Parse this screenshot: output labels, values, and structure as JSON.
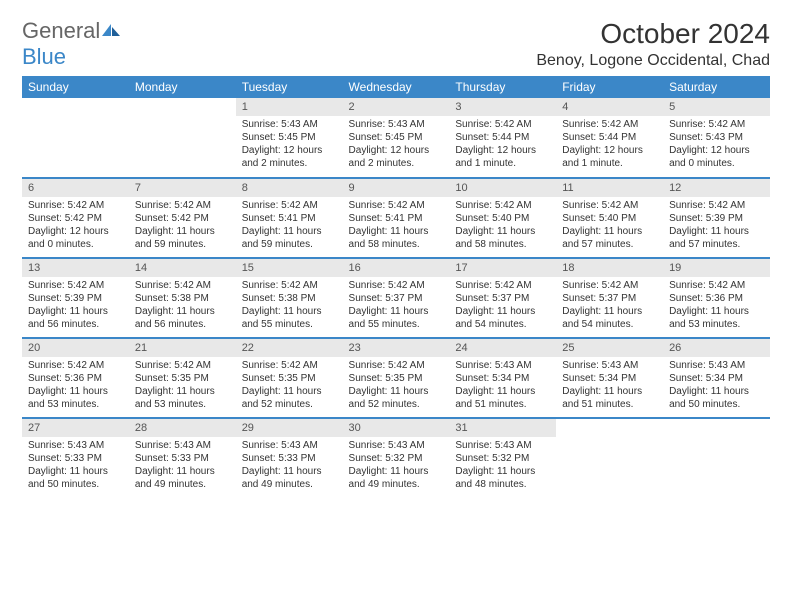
{
  "logo": {
    "general": "General",
    "blue": "Blue"
  },
  "title": "October 2024",
  "location": "Benoy, Logone Occidental, Chad",
  "colors": {
    "header_bg": "#3b87c8",
    "header_fg": "#ffffff",
    "daynum_bg": "#e8e8e8",
    "rule": "#3b87c8",
    "text": "#333333",
    "background": "#ffffff"
  },
  "weekdays": [
    "Sunday",
    "Monday",
    "Tuesday",
    "Wednesday",
    "Thursday",
    "Friday",
    "Saturday"
  ],
  "weeks": [
    [
      null,
      null,
      {
        "n": "1",
        "sr": "Sunrise: 5:43 AM",
        "ss": "Sunset: 5:45 PM",
        "dl": "Daylight: 12 hours and 2 minutes."
      },
      {
        "n": "2",
        "sr": "Sunrise: 5:43 AM",
        "ss": "Sunset: 5:45 PM",
        "dl": "Daylight: 12 hours and 2 minutes."
      },
      {
        "n": "3",
        "sr": "Sunrise: 5:42 AM",
        "ss": "Sunset: 5:44 PM",
        "dl": "Daylight: 12 hours and 1 minute."
      },
      {
        "n": "4",
        "sr": "Sunrise: 5:42 AM",
        "ss": "Sunset: 5:44 PM",
        "dl": "Daylight: 12 hours and 1 minute."
      },
      {
        "n": "5",
        "sr": "Sunrise: 5:42 AM",
        "ss": "Sunset: 5:43 PM",
        "dl": "Daylight: 12 hours and 0 minutes."
      }
    ],
    [
      {
        "n": "6",
        "sr": "Sunrise: 5:42 AM",
        "ss": "Sunset: 5:42 PM",
        "dl": "Daylight: 12 hours and 0 minutes."
      },
      {
        "n": "7",
        "sr": "Sunrise: 5:42 AM",
        "ss": "Sunset: 5:42 PM",
        "dl": "Daylight: 11 hours and 59 minutes."
      },
      {
        "n": "8",
        "sr": "Sunrise: 5:42 AM",
        "ss": "Sunset: 5:41 PM",
        "dl": "Daylight: 11 hours and 59 minutes."
      },
      {
        "n": "9",
        "sr": "Sunrise: 5:42 AM",
        "ss": "Sunset: 5:41 PM",
        "dl": "Daylight: 11 hours and 58 minutes."
      },
      {
        "n": "10",
        "sr": "Sunrise: 5:42 AM",
        "ss": "Sunset: 5:40 PM",
        "dl": "Daylight: 11 hours and 58 minutes."
      },
      {
        "n": "11",
        "sr": "Sunrise: 5:42 AM",
        "ss": "Sunset: 5:40 PM",
        "dl": "Daylight: 11 hours and 57 minutes."
      },
      {
        "n": "12",
        "sr": "Sunrise: 5:42 AM",
        "ss": "Sunset: 5:39 PM",
        "dl": "Daylight: 11 hours and 57 minutes."
      }
    ],
    [
      {
        "n": "13",
        "sr": "Sunrise: 5:42 AM",
        "ss": "Sunset: 5:39 PM",
        "dl": "Daylight: 11 hours and 56 minutes."
      },
      {
        "n": "14",
        "sr": "Sunrise: 5:42 AM",
        "ss": "Sunset: 5:38 PM",
        "dl": "Daylight: 11 hours and 56 minutes."
      },
      {
        "n": "15",
        "sr": "Sunrise: 5:42 AM",
        "ss": "Sunset: 5:38 PM",
        "dl": "Daylight: 11 hours and 55 minutes."
      },
      {
        "n": "16",
        "sr": "Sunrise: 5:42 AM",
        "ss": "Sunset: 5:37 PM",
        "dl": "Daylight: 11 hours and 55 minutes."
      },
      {
        "n": "17",
        "sr": "Sunrise: 5:42 AM",
        "ss": "Sunset: 5:37 PM",
        "dl": "Daylight: 11 hours and 54 minutes."
      },
      {
        "n": "18",
        "sr": "Sunrise: 5:42 AM",
        "ss": "Sunset: 5:37 PM",
        "dl": "Daylight: 11 hours and 54 minutes."
      },
      {
        "n": "19",
        "sr": "Sunrise: 5:42 AM",
        "ss": "Sunset: 5:36 PM",
        "dl": "Daylight: 11 hours and 53 minutes."
      }
    ],
    [
      {
        "n": "20",
        "sr": "Sunrise: 5:42 AM",
        "ss": "Sunset: 5:36 PM",
        "dl": "Daylight: 11 hours and 53 minutes."
      },
      {
        "n": "21",
        "sr": "Sunrise: 5:42 AM",
        "ss": "Sunset: 5:35 PM",
        "dl": "Daylight: 11 hours and 53 minutes."
      },
      {
        "n": "22",
        "sr": "Sunrise: 5:42 AM",
        "ss": "Sunset: 5:35 PM",
        "dl": "Daylight: 11 hours and 52 minutes."
      },
      {
        "n": "23",
        "sr": "Sunrise: 5:42 AM",
        "ss": "Sunset: 5:35 PM",
        "dl": "Daylight: 11 hours and 52 minutes."
      },
      {
        "n": "24",
        "sr": "Sunrise: 5:43 AM",
        "ss": "Sunset: 5:34 PM",
        "dl": "Daylight: 11 hours and 51 minutes."
      },
      {
        "n": "25",
        "sr": "Sunrise: 5:43 AM",
        "ss": "Sunset: 5:34 PM",
        "dl": "Daylight: 11 hours and 51 minutes."
      },
      {
        "n": "26",
        "sr": "Sunrise: 5:43 AM",
        "ss": "Sunset: 5:34 PM",
        "dl": "Daylight: 11 hours and 50 minutes."
      }
    ],
    [
      {
        "n": "27",
        "sr": "Sunrise: 5:43 AM",
        "ss": "Sunset: 5:33 PM",
        "dl": "Daylight: 11 hours and 50 minutes."
      },
      {
        "n": "28",
        "sr": "Sunrise: 5:43 AM",
        "ss": "Sunset: 5:33 PM",
        "dl": "Daylight: 11 hours and 49 minutes."
      },
      {
        "n": "29",
        "sr": "Sunrise: 5:43 AM",
        "ss": "Sunset: 5:33 PM",
        "dl": "Daylight: 11 hours and 49 minutes."
      },
      {
        "n": "30",
        "sr": "Sunrise: 5:43 AM",
        "ss": "Sunset: 5:32 PM",
        "dl": "Daylight: 11 hours and 49 minutes."
      },
      {
        "n": "31",
        "sr": "Sunrise: 5:43 AM",
        "ss": "Sunset: 5:32 PM",
        "dl": "Daylight: 11 hours and 48 minutes."
      },
      null,
      null
    ]
  ]
}
